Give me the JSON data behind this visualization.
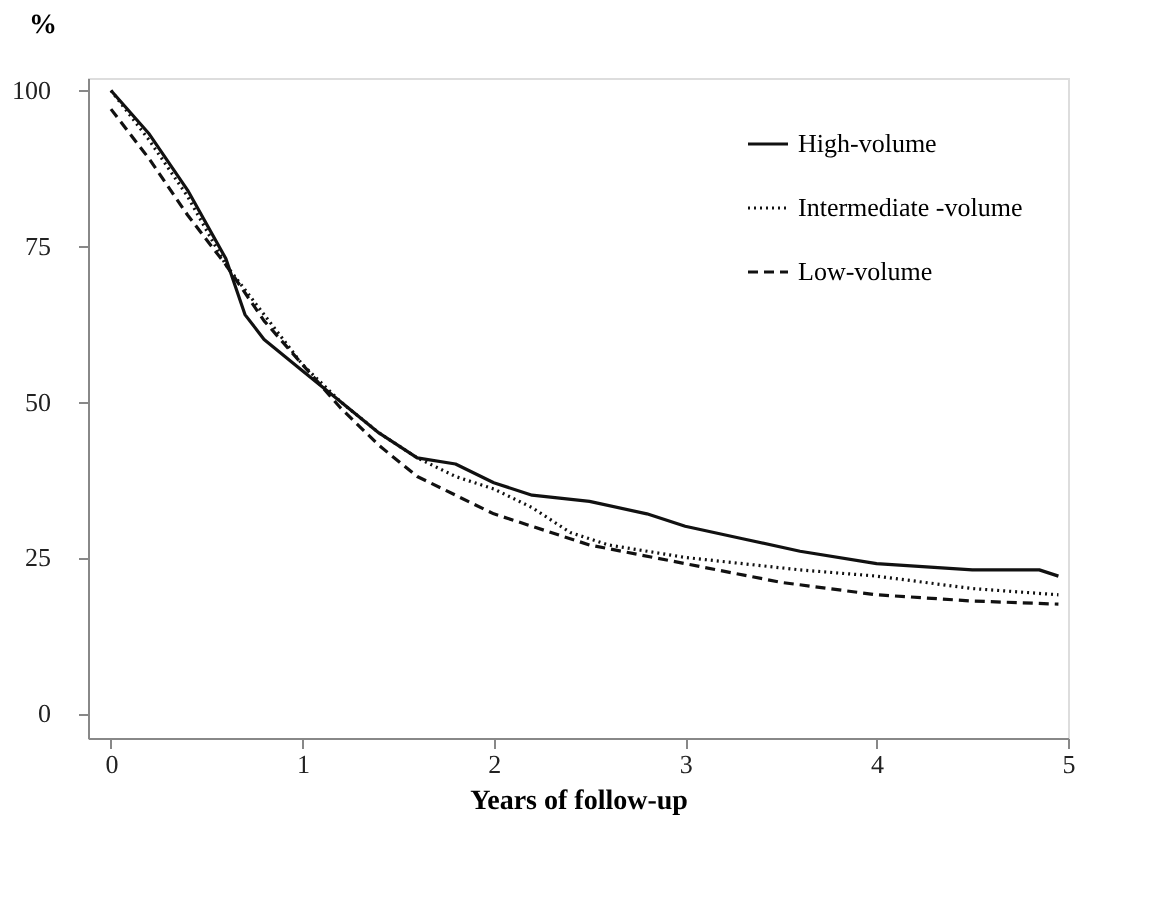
{
  "chart_data": {
    "type": "line",
    "xlabel": "Years of follow-up",
    "ylabel": "%",
    "xlim": [
      -0.12,
      5
    ],
    "ylim": [
      -4,
      102
    ],
    "xticks": [
      0,
      1,
      2,
      3,
      4,
      5
    ],
    "yticks": [
      0,
      25,
      50,
      75,
      100
    ],
    "grid": false,
    "legend": "top right",
    "marker": "none",
    "series": [
      {
        "name": "High-volume",
        "color": "#111111",
        "line_style": "solid",
        "x": [
          0,
          0.2,
          0.4,
          0.6,
          0.7,
          0.8,
          1.0,
          1.2,
          1.4,
          1.6,
          1.8,
          2.0,
          2.2,
          2.5,
          2.8,
          3.0,
          3.3,
          3.6,
          4.0,
          4.5,
          4.85,
          4.95
        ],
        "values": [
          100,
          93,
          84,
          73,
          64,
          60,
          55,
          50,
          45,
          41,
          40,
          37,
          35,
          34,
          32,
          30,
          28,
          26,
          24,
          23,
          23,
          22
        ]
      },
      {
        "name": "Intermediate -volume",
        "color": "#111111",
        "line_style": "dotted",
        "x": [
          0,
          0.2,
          0.4,
          0.6,
          0.8,
          1.0,
          1.2,
          1.4,
          1.6,
          1.8,
          2.0,
          2.2,
          2.4,
          2.6,
          3.0,
          3.3,
          3.6,
          4.0,
          4.5,
          4.95
        ],
        "values": [
          100,
          92,
          83,
          72,
          64,
          56,
          50,
          45,
          41,
          38,
          36,
          33,
          29,
          27,
          25,
          24,
          23,
          22,
          20,
          19
        ]
      },
      {
        "name": "Low-volume",
        "color": "#111111",
        "line_style": "dashed",
        "x": [
          0,
          0.2,
          0.4,
          0.6,
          0.8,
          1.0,
          1.2,
          1.4,
          1.6,
          1.8,
          2.0,
          2.2,
          2.5,
          3.0,
          3.5,
          4.0,
          4.5,
          4.95
        ],
        "values": [
          97,
          89,
          80,
          72,
          63,
          56,
          49,
          43,
          38,
          35,
          32,
          30,
          27,
          24,
          21,
          19,
          18,
          17.5
        ]
      }
    ]
  }
}
